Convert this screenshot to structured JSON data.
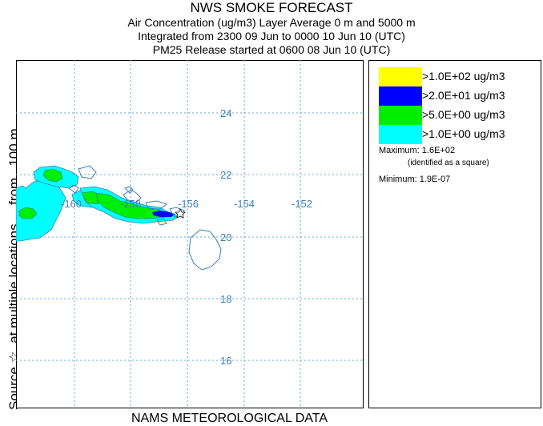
{
  "header": {
    "line1": "NWS SMOKE FORECAST",
    "line2": "Air Concentration (ug/m3) Layer Average    0 m and  5000 m",
    "line3": "Integrated from 2300 09 Jun to 0000 10 Jun 10 (UTC)",
    "line4": "PM25 Release started at 0600 08 Jun 10 (UTC)"
  },
  "side_label": "Source ☆  at multiple locations     from   100 m",
  "bottom_label": "NAMS METEOROLOGICAL DATA",
  "map": {
    "lat_labels": [
      "24",
      "22",
      "20",
      "18",
      "16"
    ],
    "lon_labels": [
      "-160",
      "-158",
      "-156",
      "-154",
      "-152"
    ],
    "grid_color": "#6fa6d6",
    "coast_color": "#3c7fb5",
    "label_color": "#3c7fb5"
  },
  "legend": {
    "entries": [
      {
        "label": ">1.0E+02 ug/m3",
        "color": "#ffff00"
      },
      {
        "label": ">2.0E+01 ug/m3",
        "color": "#0000ff"
      },
      {
        "label": ">5.0E+00 ug/m3",
        "color": "#00ee00"
      },
      {
        "label": ">1.0E+00 ug/m3",
        "color": "#00ffff"
      }
    ],
    "maximum": "Maximum: 1.6E+02",
    "maximum_note": "(identified as a square)",
    "minimum": "Minimum: 1.9E-07"
  }
}
